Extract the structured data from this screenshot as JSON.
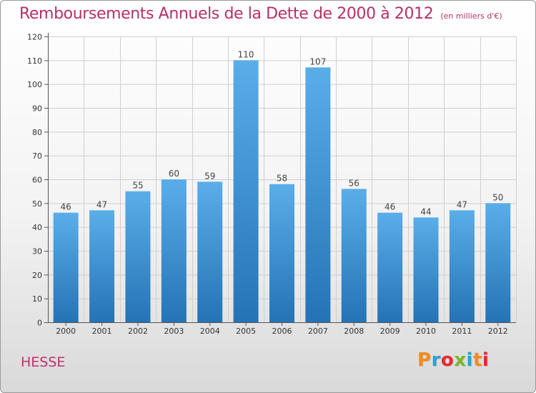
{
  "header": {
    "title": "Remboursements Annuels de la Dette de 2000 à 2012",
    "subtitle": "(en milliers d'€)"
  },
  "footer": {
    "commune": "HESSE",
    "logo_text": "Proxiti",
    "logo_colors": [
      "#f28c1a",
      "#2aa0d8",
      "#e8292e",
      "#7ab829",
      "#2aa0d8",
      "#f28c1a",
      "#e8292e"
    ]
  },
  "colors": {
    "bar_dark": "#2573b6",
    "bar_light": "#5aaee8",
    "title": "#b5306a",
    "grid": "#cfcfcf"
  },
  "chart_data": {
    "type": "bar",
    "categories": [
      "2000",
      "2001",
      "2002",
      "2003",
      "2004",
      "2005",
      "2006",
      "2007",
      "2008",
      "2009",
      "2010",
      "2011",
      "2012"
    ],
    "values": [
      46,
      47,
      55,
      60,
      59,
      110,
      58,
      107,
      56,
      46,
      44,
      47,
      50
    ],
    "ylim": [
      0,
      120
    ],
    "yticks": [
      0,
      10,
      20,
      30,
      40,
      50,
      60,
      70,
      80,
      90,
      100,
      110,
      120
    ],
    "grid": true,
    "data_labels": true
  }
}
